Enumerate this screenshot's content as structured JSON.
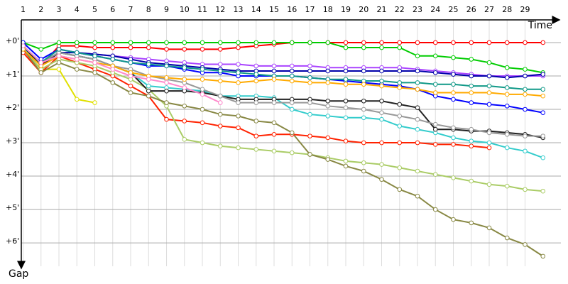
{
  "chart_data": {
    "type": "line",
    "x_label": "Time",
    "y_label": "Gap",
    "x": [
      1,
      2,
      3,
      4,
      5,
      6,
      7,
      8,
      9,
      10,
      11,
      12,
      13,
      14,
      15,
      16,
      17,
      18,
      19,
      20,
      21,
      22,
      23,
      24,
      25,
      26,
      27,
      28,
      29,
      30
    ],
    "xlim": [
      0.9,
      31
    ],
    "xticks": [
      1,
      2,
      3,
      4,
      5,
      6,
      7,
      8,
      9,
      10,
      11,
      12,
      13,
      14,
      15,
      16,
      17,
      18,
      19,
      20,
      21,
      22,
      23,
      24,
      25,
      26,
      27,
      28,
      29
    ],
    "ylim": [
      -0.68,
      6.7
    ],
    "yticks": [
      {
        "value": 0,
        "label": "+0'"
      },
      {
        "value": 1,
        "label": "+1'"
      },
      {
        "value": 2,
        "label": "+2'"
      },
      {
        "value": 3,
        "label": "+3'"
      },
      {
        "value": 4,
        "label": "+4'"
      },
      {
        "value": 5,
        "label": "+5'"
      },
      {
        "value": 6,
        "label": "+6'"
      }
    ],
    "grid": true,
    "y_inverted": true,
    "series": [
      {
        "color": "#ff0000",
        "values": [
          0.1,
          0.7,
          0.1,
          0.1,
          0.15,
          0.15,
          0.15,
          0.15,
          0.2,
          0.2,
          0.2,
          0.2,
          0.15,
          0.1,
          0.05,
          0,
          0,
          0,
          0,
          0,
          0,
          0,
          0,
          0,
          0,
          0,
          0,
          0,
          0,
          0
        ]
      },
      {
        "color": "#00cc00",
        "values": [
          0,
          0.2,
          0,
          0,
          0,
          0,
          0,
          0,
          0,
          0,
          0,
          0,
          0,
          0,
          0,
          0,
          0,
          0,
          0.15,
          0.15,
          0.15,
          0.15,
          0.4,
          0.4,
          0.45,
          0.5,
          0.6,
          0.75,
          0.8,
          0.9
        ]
      },
      {
        "color": "#aa44ff",
        "values": [
          0.1,
          0.6,
          0.2,
          0.3,
          0.35,
          0.4,
          0.45,
          0.5,
          0.55,
          0.6,
          0.65,
          0.65,
          0.65,
          0.7,
          0.7,
          0.7,
          0.7,
          0.75,
          0.75,
          0.75,
          0.75,
          0.75,
          0.8,
          0.85,
          0.9,
          0.95,
          1.0,
          1.0,
          1.0,
          1.0
        ]
      },
      {
        "color": "#0000aa",
        "values": [
          0.2,
          0.6,
          0.3,
          0.3,
          0.35,
          0.4,
          0.5,
          0.6,
          0.65,
          0.7,
          0.75,
          0.8,
          0.85,
          0.85,
          0.85,
          0.85,
          0.85,
          0.85,
          0.85,
          0.85,
          0.85,
          0.85,
          0.85,
          0.9,
          0.95,
          1.0,
          1.0,
          1.05,
          1.0,
          0.95
        ]
      },
      {
        "color": "#e0e000",
        "values": [
          0.2,
          0.8,
          0.8,
          1.7,
          1.8,
          null,
          null,
          null,
          null,
          null,
          null,
          null,
          null,
          null,
          null,
          null,
          null,
          null,
          null,
          null,
          null,
          null,
          null,
          null,
          null,
          null,
          null,
          null,
          null,
          null
        ]
      },
      {
        "color": "#ff2200",
        "values": [
          0.3,
          0.9,
          0.4,
          0.6,
          0.8,
          1.0,
          1.3,
          1.6,
          2.3,
          2.35,
          2.4,
          2.5,
          2.55,
          2.8,
          2.75,
          2.75,
          2.8,
          2.85,
          2.95,
          3.0,
          3.0,
          3.0,
          3.0,
          3.05,
          3.05,
          3.1,
          3.15,
          null,
          null,
          null
        ]
      },
      {
        "color": "#aacc66",
        "values": [
          0.2,
          0.8,
          0.5,
          0.6,
          0.7,
          0.9,
          1.1,
          1.4,
          1.9,
          2.9,
          3.0,
          3.1,
          3.15,
          3.2,
          3.25,
          3.3,
          3.35,
          3.45,
          3.55,
          3.6,
          3.65,
          3.75,
          3.85,
          3.95,
          4.05,
          4.15,
          4.25,
          4.3,
          4.4,
          4.45
        ]
      },
      {
        "color": "#888844",
        "values": [
          0.2,
          0.9,
          0.6,
          0.8,
          0.9,
          1.2,
          1.5,
          1.6,
          1.8,
          1.9,
          2.0,
          2.15,
          2.2,
          2.35,
          2.4,
          2.7,
          3.35,
          3.5,
          3.7,
          3.85,
          4.1,
          4.4,
          4.6,
          5.0,
          5.3,
          5.4,
          5.55,
          5.85,
          6.05,
          6.4
        ]
      },
      {
        "color": "#33cccc",
        "values": [
          0.2,
          0.6,
          0.3,
          0.4,
          0.5,
          0.7,
          0.9,
          1.3,
          1.35,
          1.4,
          1.45,
          1.6,
          1.6,
          1.6,
          1.65,
          2.0,
          2.15,
          2.2,
          2.25,
          2.25,
          2.3,
          2.5,
          2.6,
          2.7,
          2.85,
          2.95,
          3.0,
          3.15,
          3.25,
          3.45
        ]
      },
      {
        "color": "#222222",
        "values": [
          0.1,
          0.7,
          0.3,
          0.4,
          0.5,
          0.7,
          0.9,
          1.45,
          1.45,
          1.45,
          1.5,
          1.6,
          1.7,
          1.7,
          1.7,
          1.7,
          1.7,
          1.75,
          1.75,
          1.75,
          1.75,
          1.85,
          1.95,
          2.6,
          2.6,
          2.65,
          2.65,
          2.7,
          2.75,
          2.85
        ]
      },
      {
        "color": "#999999",
        "values": [
          0.1,
          0.6,
          0.3,
          0.4,
          0.5,
          0.7,
          0.8,
          1.0,
          1.1,
          1.2,
          1.4,
          1.6,
          1.8,
          1.8,
          1.8,
          1.8,
          1.8,
          1.9,
          1.95,
          2.0,
          2.1,
          2.2,
          2.3,
          2.45,
          2.55,
          2.6,
          2.7,
          2.75,
          2.8,
          2.8
        ]
      },
      {
        "color": "#0000ff",
        "values": [
          0,
          0.5,
          0.2,
          0.3,
          0.4,
          0.5,
          0.6,
          0.7,
          0.7,
          0.8,
          0.9,
          0.9,
          1.0,
          1.0,
          1.0,
          1.0,
          1.05,
          1.1,
          1.15,
          1.2,
          1.25,
          1.3,
          1.4,
          1.6,
          1.7,
          1.8,
          1.85,
          1.9,
          2.0,
          2.1
        ]
      },
      {
        "color": "#119988",
        "values": [
          0.1,
          0.6,
          0.2,
          0.3,
          0.4,
          0.5,
          0.6,
          0.65,
          0.7,
          0.75,
          0.8,
          0.85,
          0.9,
          0.95,
          1.0,
          1.0,
          1.05,
          1.1,
          1.1,
          1.15,
          1.15,
          1.2,
          1.2,
          1.25,
          1.25,
          1.3,
          1.3,
          1.35,
          1.4,
          1.4
        ]
      },
      {
        "color": "#ffaa00",
        "values": [
          0.2,
          0.7,
          0.4,
          0.5,
          0.6,
          0.7,
          0.9,
          1.0,
          1.05,
          1.1,
          1.1,
          1.15,
          1.2,
          1.15,
          1.1,
          1.15,
          1.2,
          1.2,
          1.25,
          1.25,
          1.3,
          1.35,
          1.4,
          1.5,
          1.5,
          1.5,
          1.5,
          1.55,
          1.55,
          1.6
        ]
      },
      {
        "color": "#ff88cc",
        "values": [
          0.1,
          0.6,
          0.4,
          0.5,
          0.6,
          0.8,
          1.0,
          1.1,
          1.2,
          1.35,
          1.55,
          1.8,
          null,
          null,
          null,
          null,
          null,
          null,
          null,
          null,
          null,
          null,
          null,
          null,
          null,
          null,
          null,
          null,
          null,
          null
        ]
      }
    ]
  }
}
